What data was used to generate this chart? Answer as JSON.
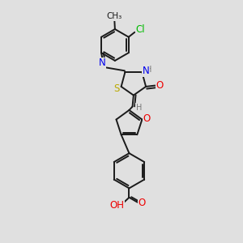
{
  "bg_color": "#e0e0e0",
  "bond_color": "#1a1a1a",
  "bond_width": 1.4,
  "N_color": "#0000ee",
  "O_color": "#ee0000",
  "S_color": "#bbaa00",
  "Cl_color": "#00bb00",
  "H_color": "#777777",
  "C_color": "#1a1a1a",
  "label_size": 8.5,
  "small_size": 7.5,
  "xlim": [
    0,
    8
  ],
  "ylim": [
    0,
    11
  ]
}
